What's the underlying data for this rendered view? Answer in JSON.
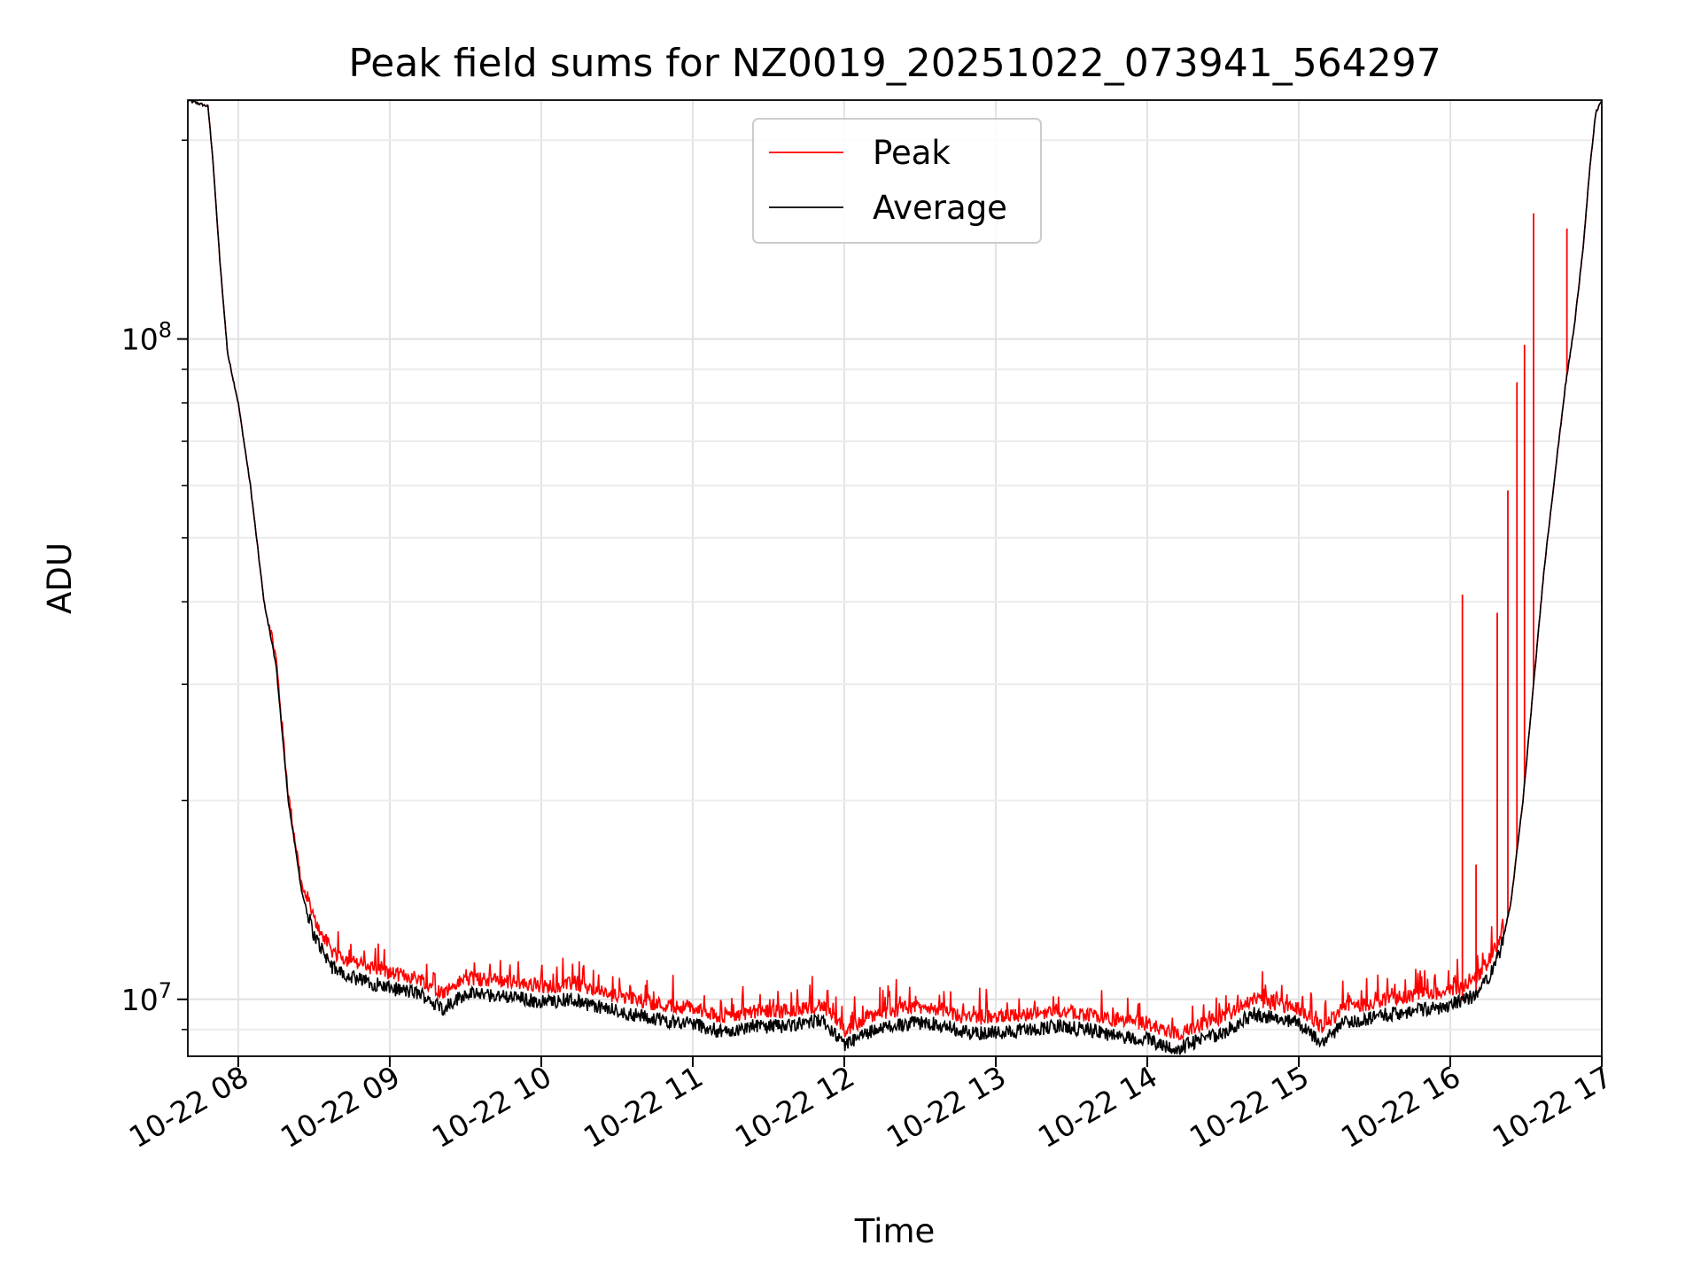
{
  "chart_data": {
    "type": "line",
    "title": "Peak field sums for NZ0019_20251022_073941_564297",
    "xlabel": "Time",
    "ylabel": "ADU",
    "yscale": "log",
    "ylim": [
      8200000,
      230000000
    ],
    "xlim_hours": [
      7.667,
      17.0
    ],
    "grid": true,
    "legend_position": "upper center",
    "x_ticks": [
      {
        "hour": 8,
        "label": "10-22 08"
      },
      {
        "hour": 9,
        "label": "10-22 09"
      },
      {
        "hour": 10,
        "label": "10-22 10"
      },
      {
        "hour": 11,
        "label": "10-22 11"
      },
      {
        "hour": 12,
        "label": "10-22 12"
      },
      {
        "hour": 13,
        "label": "10-22 13"
      },
      {
        "hour": 14,
        "label": "10-22 14"
      },
      {
        "hour": 15,
        "label": "10-22 15"
      },
      {
        "hour": 16,
        "label": "10-22 16"
      },
      {
        "hour": 17,
        "label": "10-22 17"
      }
    ],
    "y_major_ticks": [
      {
        "value": 10000000,
        "base": "10",
        "exp": "7"
      },
      {
        "value": 100000000,
        "base": "10",
        "exp": "8"
      }
    ],
    "series": [
      {
        "name": "Peak",
        "color": "#ff0000",
        "style": "noisy_upper",
        "spikes": [
          {
            "hour": 16.08,
            "value": 41000000
          },
          {
            "hour": 16.17,
            "value": 16000000
          },
          {
            "hour": 16.31,
            "value": 38500000
          },
          {
            "hour": 16.38,
            "value": 59000000
          },
          {
            "hour": 16.44,
            "value": 86000000
          },
          {
            "hour": 16.49,
            "value": 98000000
          },
          {
            "hour": 16.55,
            "value": 155000000
          },
          {
            "hour": 16.77,
            "value": 147000000
          }
        ]
      },
      {
        "name": "Average",
        "color": "#000000",
        "style": "baseline",
        "points": [
          [
            7.667,
            230000000
          ],
          [
            7.8,
            225000000
          ],
          [
            7.83,
            190000000
          ],
          [
            7.88,
            130000000
          ],
          [
            7.93,
            95000000
          ],
          [
            8.0,
            80000000
          ],
          [
            8.08,
            60000000
          ],
          [
            8.17,
            40000000
          ],
          [
            8.25,
            32000000
          ],
          [
            8.33,
            20000000
          ],
          [
            8.42,
            14500000
          ],
          [
            8.5,
            12500000
          ],
          [
            8.62,
            11200000
          ],
          [
            8.75,
            10800000
          ],
          [
            9.0,
            10400000
          ],
          [
            9.2,
            10200000
          ],
          [
            9.35,
            9700000
          ],
          [
            9.5,
            10200000
          ],
          [
            9.8,
            10100000
          ],
          [
            10.0,
            9900000
          ],
          [
            10.2,
            10000000
          ],
          [
            10.4,
            9700000
          ],
          [
            10.6,
            9500000
          ],
          [
            10.8,
            9300000
          ],
          [
            11.0,
            9200000
          ],
          [
            11.2,
            8900000
          ],
          [
            11.4,
            9100000
          ],
          [
            11.6,
            9100000
          ],
          [
            11.85,
            9300000
          ],
          [
            12.0,
            8500000
          ],
          [
            12.15,
            8900000
          ],
          [
            12.4,
            9200000
          ],
          [
            12.6,
            9200000
          ],
          [
            12.8,
            8900000
          ],
          [
            13.0,
            8900000
          ],
          [
            13.2,
            9000000
          ],
          [
            13.4,
            9100000
          ],
          [
            13.6,
            9000000
          ],
          [
            13.8,
            8800000
          ],
          [
            14.0,
            8700000
          ],
          [
            14.2,
            8400000
          ],
          [
            14.35,
            8700000
          ],
          [
            14.5,
            8900000
          ],
          [
            14.7,
            9500000
          ],
          [
            14.9,
            9300000
          ],
          [
            15.0,
            9200000
          ],
          [
            15.15,
            8600000
          ],
          [
            15.3,
            9200000
          ],
          [
            15.6,
            9500000
          ],
          [
            15.9,
            9700000
          ],
          [
            16.0,
            9800000
          ],
          [
            16.15,
            10100000
          ],
          [
            16.25,
            10800000
          ],
          [
            16.33,
            11800000
          ],
          [
            16.4,
            14000000
          ],
          [
            16.48,
            20000000
          ],
          [
            16.55,
            30000000
          ],
          [
            16.62,
            45000000
          ],
          [
            16.7,
            65000000
          ],
          [
            16.76,
            85000000
          ],
          [
            16.82,
            105000000
          ],
          [
            16.88,
            140000000
          ],
          [
            16.92,
            180000000
          ],
          [
            16.96,
            220000000
          ],
          [
            17.0,
            230000000
          ]
        ]
      }
    ]
  }
}
